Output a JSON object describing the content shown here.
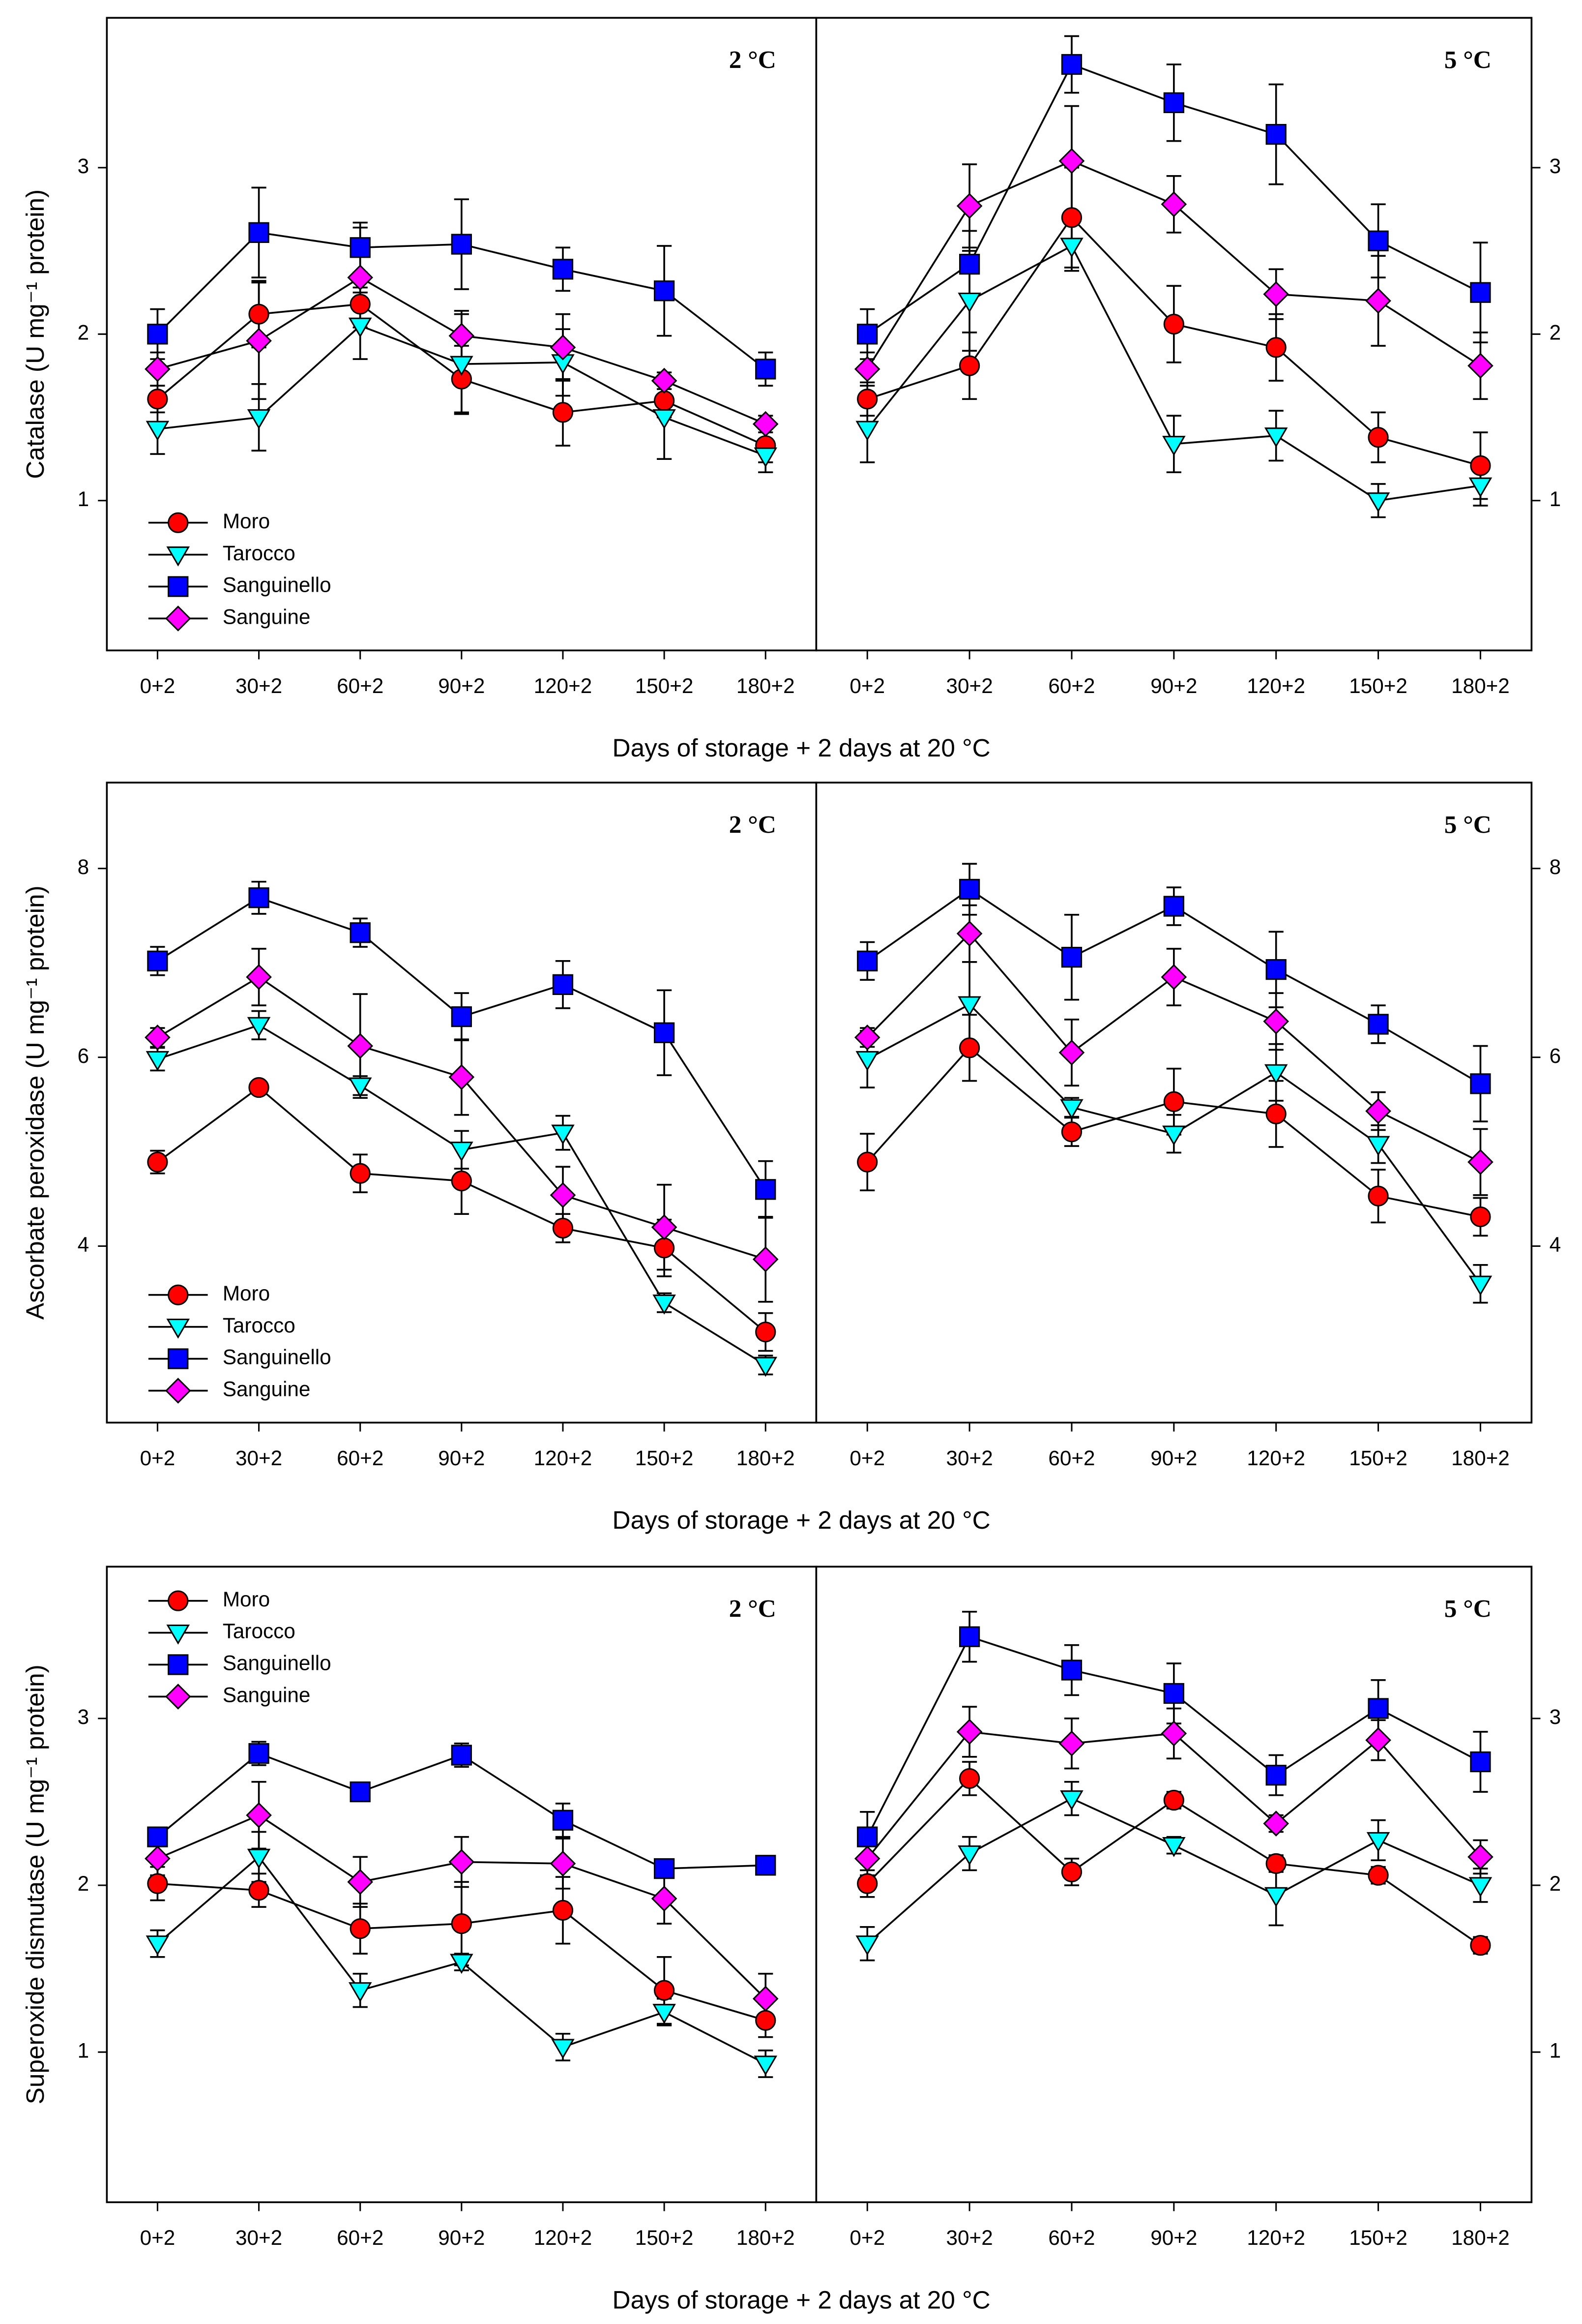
{
  "chart_data": [
    {
      "type": "line",
      "title": "2 °C",
      "ylabel": "Catalase (U mg⁻¹ protein)",
      "xlabel": "Days of storage + 2 days at 20 °C",
      "legend": "lower left",
      "categories": [
        "0+2",
        "30+2",
        "60+2",
        "90+2",
        "120+2",
        "150+2",
        "180+2"
      ],
      "ylim": [
        0.1,
        3.9
      ],
      "yticks": [
        1,
        2,
        3
      ],
      "series": [
        {
          "name": "Moro",
          "color": "#ff0000",
          "marker": "circle",
          "values": [
            1.61,
            2.12,
            2.18,
            1.73,
            1.53,
            1.6,
            1.33
          ],
          "errors": [
            0.08,
            0.2,
            0.1,
            0.2,
            0.2,
            0.1,
            0.1
          ]
        },
        {
          "name": "Tarocco",
          "color": "#00ffff",
          "marker": "triangle-down",
          "values": [
            1.43,
            1.5,
            2.05,
            1.82,
            1.83,
            1.5,
            1.27
          ],
          "errors": [
            0.15,
            0.2,
            0.2,
            0.3,
            0.2,
            0.25,
            0.1
          ]
        },
        {
          "name": "Sanguinello",
          "color": "#0000ff",
          "marker": "square",
          "values": [
            2.0,
            2.61,
            2.52,
            2.54,
            2.39,
            2.26,
            1.79
          ],
          "errors": [
            0.15,
            0.27,
            0.15,
            0.27,
            0.13,
            0.27,
            0.1
          ]
        },
        {
          "name": "Sanguine",
          "color": "#ff00ff",
          "marker": "diamond",
          "values": [
            1.79,
            1.96,
            2.34,
            1.99,
            1.92,
            1.72,
            1.46
          ],
          "errors": [
            0.1,
            0.35,
            0.3,
            0.15,
            0.2,
            0.05,
            0.05
          ]
        }
      ]
    },
    {
      "type": "line",
      "title": "5 °C",
      "categories": [
        "0+2",
        "30+2",
        "60+2",
        "90+2",
        "120+2",
        "150+2",
        "180+2"
      ],
      "ylim": [
        0.1,
        3.9
      ],
      "yticks": [
        1,
        2,
        3
      ],
      "series": [
        {
          "color": "#ff0000",
          "marker": "circle",
          "values": [
            1.61,
            1.81,
            2.7,
            2.06,
            1.92,
            1.38,
            1.21
          ],
          "errors": [
            0.1,
            0.2,
            0.3,
            0.23,
            0.2,
            0.15,
            0.2
          ]
        },
        {
          "color": "#00ffff",
          "marker": "triangle-down",
          "values": [
            1.43,
            2.2,
            2.53,
            1.34,
            1.39,
            1.0,
            1.09
          ],
          "errors": [
            0.2,
            0.3,
            0.15,
            0.17,
            0.15,
            0.1,
            0.12
          ]
        },
        {
          "color": "#0000ff",
          "marker": "square",
          "values": [
            2.0,
            2.42,
            3.62,
            3.39,
            3.2,
            2.56,
            2.25
          ],
          "errors": [
            0.15,
            0.2,
            0.17,
            0.23,
            0.3,
            0.22,
            0.3
          ]
        },
        {
          "color": "#ff00ff",
          "marker": "diamond",
          "values": [
            1.79,
            2.77,
            3.04,
            2.78,
            2.24,
            2.2,
            1.81
          ],
          "errors": [
            0.1,
            0.25,
            0.33,
            0.17,
            0.15,
            0.27,
            0.2
          ]
        }
      ]
    },
    {
      "type": "line",
      "title": "2 °C",
      "ylabel": "Ascorbate peroxidase (U mg⁻¹ protein)",
      "xlabel": "Days of storage + 2 days at 20 °C",
      "legend": "lower left",
      "categories": [
        "0+2",
        "30+2",
        "60+2",
        "90+2",
        "120+2",
        "150+2",
        "180+2"
      ],
      "ylim": [
        2.13,
        8.91
      ],
      "yticks": [
        4,
        6,
        8
      ],
      "series": [
        {
          "name": "Moro",
          "color": "#ff0000",
          "marker": "circle",
          "values": [
            4.89,
            5.68,
            4.77,
            4.69,
            4.19,
            3.98,
            3.09
          ],
          "errors": [
            0.12,
            0.05,
            0.2,
            0.35,
            0.15,
            0.3,
            0.2
          ]
        },
        {
          "name": "Tarocco",
          "color": "#00ffff",
          "marker": "triangle-down",
          "values": [
            5.98,
            6.34,
            5.7,
            5.02,
            5.2,
            3.4,
            2.74
          ],
          "errors": [
            0.12,
            0.15,
            0.1,
            0.2,
            0.18,
            0.1,
            0.1
          ]
        },
        {
          "name": "Sanguinello",
          "color": "#0000ff",
          "marker": "square",
          "values": [
            7.02,
            7.69,
            7.32,
            6.43,
            6.77,
            6.26,
            4.6
          ],
          "errors": [
            0.15,
            0.17,
            0.15,
            0.25,
            0.25,
            0.45,
            0.3
          ]
        },
        {
          "name": "Sanguine",
          "color": "#ff00ff",
          "marker": "diamond",
          "values": [
            6.21,
            6.85,
            6.12,
            5.79,
            4.54,
            4.2,
            3.86
          ],
          "errors": [
            0.1,
            0.3,
            0.55,
            0.4,
            0.3,
            0.45,
            0.45
          ]
        }
      ]
    },
    {
      "type": "line",
      "title": "5 °C",
      "categories": [
        "0+2",
        "30+2",
        "60+2",
        "90+2",
        "120+2",
        "150+2",
        "180+2"
      ],
      "ylim": [
        2.13,
        8.91
      ],
      "yticks": [
        4,
        6,
        8
      ],
      "series": [
        {
          "color": "#ff0000",
          "marker": "circle",
          "values": [
            4.89,
            6.1,
            5.21,
            5.53,
            5.4,
            4.53,
            4.31
          ],
          "errors": [
            0.3,
            0.35,
            0.15,
            0.35,
            0.35,
            0.28,
            0.2
          ]
        },
        {
          "color": "#00ffff",
          "marker": "triangle-down",
          "values": [
            5.98,
            6.56,
            5.47,
            5.19,
            5.84,
            5.08,
            3.6
          ],
          "errors": [
            0.3,
            0.45,
            0.1,
            0.2,
            0.3,
            0.2,
            0.2
          ]
        },
        {
          "color": "#0000ff",
          "marker": "square",
          "values": [
            7.02,
            7.78,
            7.06,
            7.6,
            6.93,
            6.35,
            5.72
          ],
          "errors": [
            0.2,
            0.27,
            0.45,
            0.2,
            0.4,
            0.2,
            0.4
          ]
        },
        {
          "color": "#ff00ff",
          "marker": "diamond",
          "values": [
            6.21,
            7.31,
            6.05,
            6.85,
            6.38,
            5.43,
            4.89
          ],
          "errors": [
            0.1,
            0.3,
            0.35,
            0.3,
            0.3,
            0.2,
            0.35
          ]
        }
      ]
    },
    {
      "type": "line",
      "title": "2 °C",
      "ylabel": "Superoxide dismutase (U mg⁻¹ protein)",
      "xlabel": "Days of storage + 2 days at 20 °C",
      "legend": "upper left",
      "categories": [
        "0+2",
        "30+2",
        "60+2",
        "90+2",
        "120+2",
        "150+2",
        "180+2"
      ],
      "ylim": [
        0.1,
        3.91
      ],
      "yticks": [
        1,
        2,
        3
      ],
      "series": [
        {
          "name": "Moro",
          "color": "#ff0000",
          "marker": "circle",
          "values": [
            2.01,
            1.97,
            1.74,
            1.77,
            1.85,
            1.37,
            1.19
          ],
          "errors": [
            0.1,
            0.1,
            0.15,
            0.25,
            0.2,
            0.2,
            0.1
          ]
        },
        {
          "name": "Tarocco",
          "color": "#00ffff",
          "marker": "triangle-down",
          "values": [
            1.65,
            2.17,
            1.37,
            1.54,
            1.03,
            1.24,
            0.93
          ],
          "errors": [
            0.08,
            0.15,
            0.1,
            0.05,
            0.08,
            0.08,
            0.08
          ]
        },
        {
          "name": "Sanguinello",
          "color": "#0000ff",
          "marker": "square",
          "values": [
            2.29,
            2.79,
            2.56,
            2.78,
            2.39,
            2.1,
            2.12
          ],
          "errors": [
            0.05,
            0.07,
            0.05,
            0.07,
            0.1,
            0.05,
            0.05
          ]
        },
        {
          "name": "Sanguine",
          "color": "#ff00ff",
          "marker": "diamond",
          "values": [
            2.16,
            2.42,
            2.02,
            2.14,
            2.13,
            1.92,
            1.32
          ],
          "errors": [
            0.1,
            0.2,
            0.15,
            0.15,
            0.15,
            0.15,
            0.15
          ]
        }
      ]
    },
    {
      "type": "line",
      "title": "5 °C",
      "categories": [
        "0+2",
        "30+2",
        "60+2",
        "90+2",
        "120+2",
        "150+2",
        "180+2"
      ],
      "ylim": [
        0.1,
        3.91
      ],
      "yticks": [
        1,
        2,
        3
      ],
      "series": [
        {
          "color": "#ff0000",
          "marker": "circle",
          "values": [
            2.01,
            2.64,
            2.08,
            2.51,
            2.13,
            2.06,
            1.64
          ],
          "errors": [
            0.08,
            0.1,
            0.08,
            0.05,
            0.05,
            0.05,
            0.05
          ]
        },
        {
          "color": "#00ffff",
          "marker": "triangle-down",
          "values": [
            1.65,
            2.19,
            2.52,
            2.24,
            1.94,
            2.27,
            2.0
          ],
          "errors": [
            0.1,
            0.1,
            0.1,
            0.05,
            0.18,
            0.12,
            0.1
          ]
        },
        {
          "color": "#0000ff",
          "marker": "square",
          "values": [
            2.29,
            3.49,
            3.29,
            3.15,
            2.66,
            3.06,
            2.74
          ],
          "errors": [
            0.15,
            0.15,
            0.15,
            0.18,
            0.12,
            0.17,
            0.18
          ]
        },
        {
          "color": "#ff00ff",
          "marker": "diamond",
          "values": [
            2.16,
            2.92,
            2.85,
            2.91,
            2.37,
            2.87,
            2.17
          ],
          "errors": [
            0.1,
            0.15,
            0.15,
            0.15,
            0.05,
            0.12,
            0.1
          ]
        }
      ]
    }
  ]
}
